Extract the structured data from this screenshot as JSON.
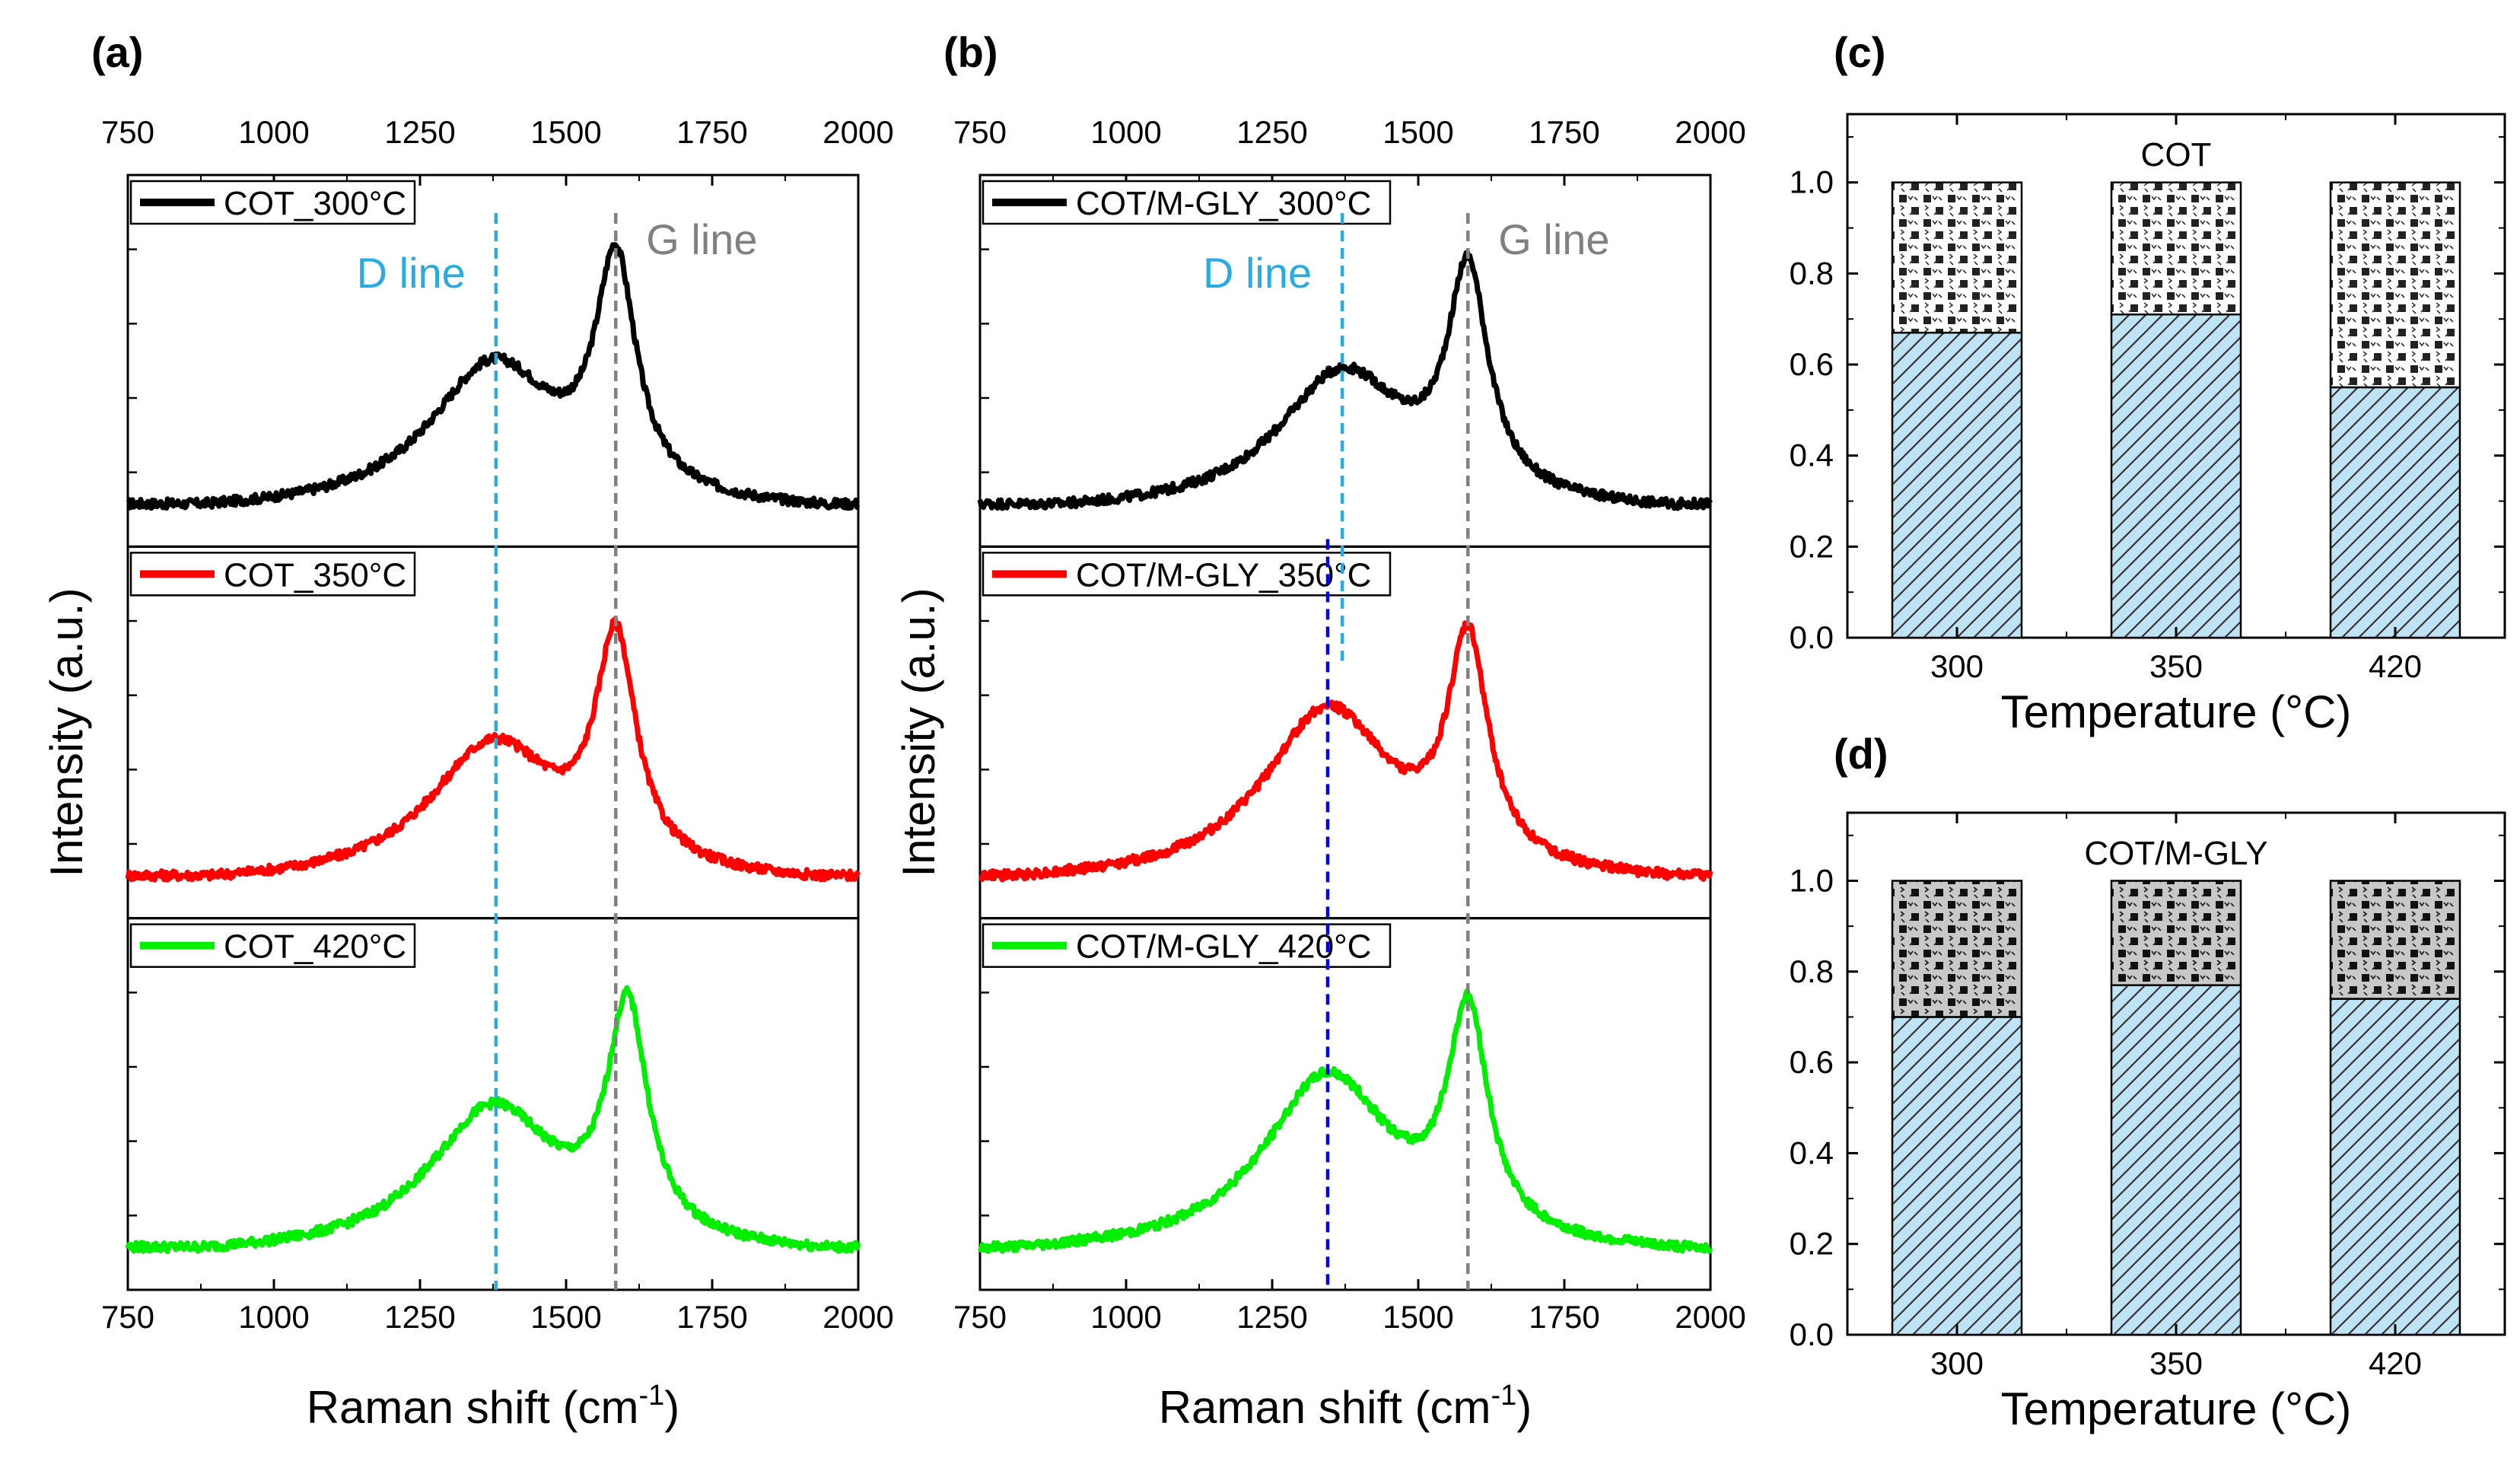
{
  "chart_data": [
    {
      "panel": "(a)",
      "type": "line",
      "xlabel": "Raman shift (cm-1)",
      "xlabel_main": "Raman shift (cm",
      "xlabel_sup": "-1",
      "xlabel_close": ")",
      "ylabel": "Intensity (a.u.)",
      "xlim": [
        750,
        2000
      ],
      "xticks": [
        "750",
        "1000",
        "1250",
        "1500",
        "1750",
        "2000"
      ],
      "d_line": {
        "label": "D line",
        "x": 1380,
        "color": "#29abe2"
      },
      "g_line": {
        "label": "G line",
        "x": 1585,
        "color": "#808080"
      },
      "series": [
        {
          "name": "COT_300°C",
          "color": "#000000",
          "D_pos": 1375,
          "D_int": 0.55,
          "G_pos": 1585,
          "G_int": 0.95
        },
        {
          "name": "COT_350°C",
          "color": "#ff0000",
          "D_pos": 1375,
          "D_int": 0.52,
          "G_pos": 1585,
          "G_int": 0.93
        },
        {
          "name": "COT_420°C",
          "color": "#00ee00",
          "D_pos": 1375,
          "D_int": 0.55,
          "G_pos": 1605,
          "G_int": 0.95
        }
      ]
    },
    {
      "panel": "(b)",
      "type": "line",
      "xlabel": "Raman shift (cm-1)",
      "xlabel_main": "Raman shift (cm",
      "xlabel_sup": "-1",
      "xlabel_close": ")",
      "ylabel": "Intensity (a.u.)",
      "xlim": [
        750,
        2000
      ],
      "xticks": [
        "750",
        "1000",
        "1250",
        "1500",
        "1750",
        "2000"
      ],
      "d_line": {
        "label": "D line",
        "x": 1370,
        "color": "#29abe2"
      },
      "d_line_shifted": {
        "x": 1345,
        "color": "#0000ff"
      },
      "g_line": {
        "label": "G line",
        "x": 1585,
        "color": "#808080"
      },
      "series": [
        {
          "name": "COT/M-GLY_300°C",
          "color": "#000000",
          "D_pos": 1370,
          "D_int": 0.52,
          "G_pos": 1585,
          "G_int": 0.92
        },
        {
          "name": "COT/M-GLY_350°C",
          "color": "#ff0000",
          "D_pos": 1345,
          "D_int": 0.65,
          "G_pos": 1585,
          "G_int": 0.92
        },
        {
          "name": "COT/M-GLY_420°C",
          "color": "#00ee00",
          "D_pos": 1345,
          "D_int": 0.67,
          "G_pos": 1585,
          "G_int": 0.92
        }
      ]
    },
    {
      "panel": "(c)",
      "type": "bar",
      "stacked": true,
      "title": "COT",
      "xlabel": "Temperature (°C)",
      "categories": [
        "300",
        "350",
        "420"
      ],
      "ylim": [
        0,
        1.15
      ],
      "yticks": [
        "0.0",
        "0.2",
        "0.4",
        "0.6",
        "0.8",
        "1.0"
      ],
      "series": [
        {
          "name": "lower",
          "color": "#bde3f5",
          "values": [
            0.67,
            0.71,
            0.55
          ]
        },
        {
          "name": "upper",
          "color": "#ffffff",
          "values": [
            0.33,
            0.29,
            0.45
          ]
        }
      ]
    },
    {
      "panel": "(d)",
      "type": "bar",
      "stacked": true,
      "title": "COT/M-GLY",
      "xlabel": "Temperature (°C)",
      "categories": [
        "300",
        "350",
        "420"
      ],
      "ylim": [
        0,
        1.15
      ],
      "yticks": [
        "0.0",
        "0.2",
        "0.4",
        "0.6",
        "0.8",
        "1.0"
      ],
      "series": [
        {
          "name": "lower",
          "color": "#bde3f5",
          "values": [
            0.7,
            0.77,
            0.74
          ]
        },
        {
          "name": "upper",
          "color": "#c8c8c8",
          "values": [
            0.3,
            0.23,
            0.26
          ]
        }
      ]
    }
  ]
}
